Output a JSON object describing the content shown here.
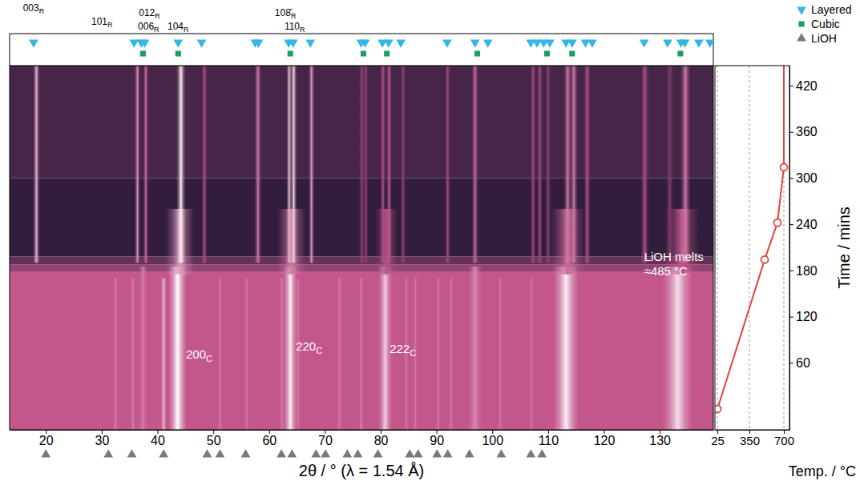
{
  "chart_data": [
    {
      "type": "heatmap",
      "xlabel": "2θ / ° (λ = 1.54 Å)",
      "ylabel": "Time / mins",
      "xlim": [
        13.5,
        139.6
      ],
      "xticks": [
        20,
        30,
        40,
        50,
        60,
        70,
        80,
        90,
        100,
        110,
        120,
        130
      ],
      "ylim": [
        -27,
        446
      ],
      "yticks": [
        60,
        120,
        180,
        240,
        300,
        360,
        420
      ],
      "zlim": [
        0,
        1
      ],
      "colors": [
        "#1c1430",
        "#c3578c",
        "#ffffff"
      ],
      "background": [
        {
          "y": [
            -27,
            178
          ],
          "z": 0.5
        },
        {
          "y": [
            178,
            188
          ],
          "z": 0.36
        },
        {
          "y": [
            188,
            198
          ],
          "z": 0.22
        },
        {
          "y": [
            198,
            300
          ],
          "z": 0.07
        },
        {
          "y": [
            300,
            446
          ],
          "z": 0.13
        }
      ],
      "streaks": [
        {
          "x": 43.6,
          "y": [
            -27,
            185
          ],
          "z": 1.0,
          "fwhm": 1.6
        },
        {
          "x": 63.8,
          "y": [
            -27,
            185
          ],
          "z": 0.95,
          "fwhm": 1.2
        },
        {
          "x": 80.8,
          "y": [
            -27,
            185
          ],
          "z": 0.85,
          "fwhm": 1.2
        },
        {
          "x": 113.2,
          "y": [
            -27,
            185
          ],
          "z": 0.95,
          "fwhm": 2.2
        },
        {
          "x": 133.2,
          "y": [
            -27,
            185
          ],
          "z": 0.9,
          "fwhm": 2.6
        },
        {
          "x": 96.9,
          "y": [
            -27,
            185
          ],
          "z": 0.65,
          "fwhm": 1.2
        },
        {
          "x": 37.4,
          "y": [
            -27,
            185
          ],
          "z": 0.6,
          "fwhm": 0.8
        },
        {
          "x": 32.5,
          "y": [
            -27,
            170
          ],
          "z": 0.62,
          "fwhm": 0.4
        },
        {
          "x": 35.6,
          "y": [
            -27,
            170
          ],
          "z": 0.62,
          "fwhm": 0.4
        },
        {
          "x": 41.1,
          "y": [
            -27,
            170
          ],
          "z": 0.8,
          "fwhm": 0.5
        },
        {
          "x": 51.2,
          "y": [
            -27,
            170
          ],
          "z": 0.6,
          "fwhm": 0.4
        },
        {
          "x": 56.0,
          "y": [
            -27,
            170
          ],
          "z": 0.6,
          "fwhm": 0.4
        },
        {
          "x": 62.3,
          "y": [
            -27,
            170
          ],
          "z": 0.62,
          "fwhm": 0.4
        },
        {
          "x": 65.2,
          "y": [
            -27,
            170
          ],
          "z": 0.6,
          "fwhm": 0.4
        },
        {
          "x": 72.6,
          "y": [
            -27,
            170
          ],
          "z": 0.6,
          "fwhm": 0.4
        },
        {
          "x": 76.5,
          "y": [
            -27,
            170
          ],
          "z": 0.62,
          "fwhm": 0.4
        },
        {
          "x": 84.6,
          "y": [
            -27,
            170
          ],
          "z": 0.6,
          "fwhm": 0.4
        },
        {
          "x": 86.2,
          "y": [
            -27,
            170
          ],
          "z": 0.6,
          "fwhm": 0.4
        },
        {
          "x": 90.3,
          "y": [
            -27,
            170
          ],
          "z": 0.6,
          "fwhm": 0.4
        },
        {
          "x": 92.6,
          "y": [
            -27,
            170
          ],
          "z": 0.6,
          "fwhm": 0.4
        },
        {
          "x": 101.4,
          "y": [
            -27,
            170
          ],
          "z": 0.6,
          "fwhm": 0.4
        },
        {
          "x": 107.0,
          "y": [
            -27,
            170
          ],
          "z": 0.6,
          "fwhm": 0.4
        },
        {
          "x": 44.0,
          "y": [
            175,
            260
          ],
          "z": 0.7,
          "fwhm": 2.5
        },
        {
          "x": 64.0,
          "y": [
            175,
            260
          ],
          "z": 0.6,
          "fwhm": 2.5
        },
        {
          "x": 81.0,
          "y": [
            175,
            260
          ],
          "z": 0.45,
          "fwhm": 2.0
        },
        {
          "x": 113.5,
          "y": [
            175,
            260
          ],
          "z": 0.55,
          "fwhm": 3.0
        },
        {
          "x": 134.0,
          "y": [
            175,
            260
          ],
          "z": 0.5,
          "fwhm": 3.0
        },
        {
          "x": 18.3,
          "y": [
            190,
            446
          ],
          "z": 0.75,
          "fwhm": 0.6
        },
        {
          "x": 36.4,
          "y": [
            190,
            446
          ],
          "z": 0.65,
          "fwhm": 0.5
        },
        {
          "x": 37.9,
          "y": [
            190,
            446
          ],
          "z": 0.55,
          "fwhm": 0.5
        },
        {
          "x": 44.2,
          "y": [
            190,
            446
          ],
          "z": 0.95,
          "fwhm": 0.8
        },
        {
          "x": 48.4,
          "y": [
            190,
            446
          ],
          "z": 0.45,
          "fwhm": 0.5
        },
        {
          "x": 58.0,
          "y": [
            190,
            446
          ],
          "z": 0.6,
          "fwhm": 0.6
        },
        {
          "x": 63.6,
          "y": [
            190,
            446
          ],
          "z": 0.8,
          "fwhm": 0.5
        },
        {
          "x": 64.4,
          "y": [
            190,
            446
          ],
          "z": 0.85,
          "fwhm": 0.6
        },
        {
          "x": 67.6,
          "y": [
            190,
            446
          ],
          "z": 0.7,
          "fwhm": 0.5
        },
        {
          "x": 76.6,
          "y": [
            190,
            446
          ],
          "z": 0.35,
          "fwhm": 0.5
        },
        {
          "x": 77.3,
          "y": [
            190,
            446
          ],
          "z": 0.35,
          "fwhm": 0.5
        },
        {
          "x": 80.4,
          "y": [
            190,
            446
          ],
          "z": 0.45,
          "fwhm": 0.5
        },
        {
          "x": 81.5,
          "y": [
            190,
            446
          ],
          "z": 0.5,
          "fwhm": 0.5
        },
        {
          "x": 84.0,
          "y": [
            190,
            446
          ],
          "z": 0.35,
          "fwhm": 0.5
        },
        {
          "x": 92.0,
          "y": [
            190,
            446
          ],
          "z": 0.4,
          "fwhm": 0.5
        },
        {
          "x": 96.9,
          "y": [
            190,
            446
          ],
          "z": 0.55,
          "fwhm": 0.6
        },
        {
          "x": 107.3,
          "y": [
            190,
            446
          ],
          "z": 0.4,
          "fwhm": 0.5
        },
        {
          "x": 108.5,
          "y": [
            190,
            446
          ],
          "z": 0.4,
          "fwhm": 0.5
        },
        {
          "x": 110.0,
          "y": [
            190,
            446
          ],
          "z": 0.35,
          "fwhm": 0.5
        },
        {
          "x": 113.5,
          "y": [
            190,
            446
          ],
          "z": 0.6,
          "fwhm": 0.7
        },
        {
          "x": 114.6,
          "y": [
            190,
            446
          ],
          "z": 0.6,
          "fwhm": 0.7
        },
        {
          "x": 117.0,
          "y": [
            190,
            446
          ],
          "z": 0.45,
          "fwhm": 0.6
        },
        {
          "x": 127.3,
          "y": [
            190,
            446
          ],
          "z": 0.45,
          "fwhm": 0.7
        },
        {
          "x": 131.8,
          "y": [
            190,
            446
          ],
          "z": 0.3,
          "fwhm": 0.7
        },
        {
          "x": 134.6,
          "y": [
            190,
            446
          ],
          "z": 0.6,
          "fwhm": 0.9
        }
      ],
      "annotations": [
        {
          "text": "200",
          "sub": "C",
          "x": 45.1,
          "y": 66
        },
        {
          "text": "220",
          "sub": "C",
          "x": 64.8,
          "y": 76
        },
        {
          "text": "222",
          "sub": "C",
          "x": 81.6,
          "y": 73
        },
        {
          "text": "LiOH melts",
          "x": 127.2,
          "y": 192
        },
        {
          "text": "≈485 °C",
          "x": 127.2,
          "y": 174
        }
      ],
      "peak_labels": [
        {
          "text": "003",
          "sub": "R",
          "x": 17.8
        },
        {
          "text": "101",
          "sub": "R",
          "x": 35.8
        },
        {
          "text": "012",
          "sub": "R",
          "x": 37.7
        },
        {
          "text": "006",
          "sub": "R",
          "x": 37.1
        },
        {
          "text": "104",
          "sub": "R",
          "x": 43.7
        },
        {
          "text": "108̄",
          "sub": "R",
          "x": 63.5
        },
        {
          "text": "110",
          "sub": "R",
          "x": 64.3
        }
      ],
      "series": [
        {
          "name": "Layered",
          "type": "scatter",
          "marker": "triangle-down",
          "color": "#35b6e6",
          "x": [
            17.8,
            35.8,
            37.1,
            37.7,
            43.7,
            47.9,
            57.5,
            58.1,
            63.5,
            64.3,
            67.4,
            76.5,
            77.2,
            80.3,
            81.4,
            83.6,
            91.9,
            96.9,
            99.2,
            106.9,
            108.0,
            109.2,
            110.3,
            113.2,
            114.3,
            116.7,
            117.9,
            127.2,
            131.4,
            133.8,
            134.5,
            137.0,
            139.0
          ]
        },
        {
          "name": "Cubic",
          "type": "scatter",
          "marker": "square",
          "color": "#1e9e5a",
          "x": [
            37.4,
            43.7,
            63.8,
            76.9,
            81.1,
            97.3,
            109.8,
            114.3,
            133.7
          ]
        },
        {
          "name": "LiOH",
          "type": "scatter",
          "marker": "triangle-up",
          "color": "#7a7a7a",
          "x": [
            20.0,
            31.2,
            35.4,
            41.1,
            48.9,
            51.2,
            55.8,
            62.2,
            64.1,
            68.4,
            70.1,
            74.0,
            75.9,
            79.5,
            85.2,
            86.7,
            90.1,
            92.0,
            95.9,
            101.6,
            106.9,
            108.9
          ]
        }
      ],
      "legend": "top-right"
    },
    {
      "type": "line",
      "xlabel": "Temp. / °C",
      "xlim": [
        0,
        757
      ],
      "xticks": [
        25,
        350,
        700
      ],
      "ylim": [
        -27,
        446
      ],
      "grid": true,
      "series": [
        {
          "type": "line",
          "line_style": "solid",
          "color": "#e8433a",
          "x": [
            25,
            505,
            635,
            700,
            700
          ],
          "y": [
            0,
            194,
            242,
            314,
            446
          ]
        },
        {
          "type": "scatter",
          "marker": "circle-open",
          "color": "#e8433a",
          "x": [
            25,
            505,
            635,
            700
          ],
          "y": [
            0,
            194,
            242,
            314
          ]
        }
      ]
    }
  ]
}
